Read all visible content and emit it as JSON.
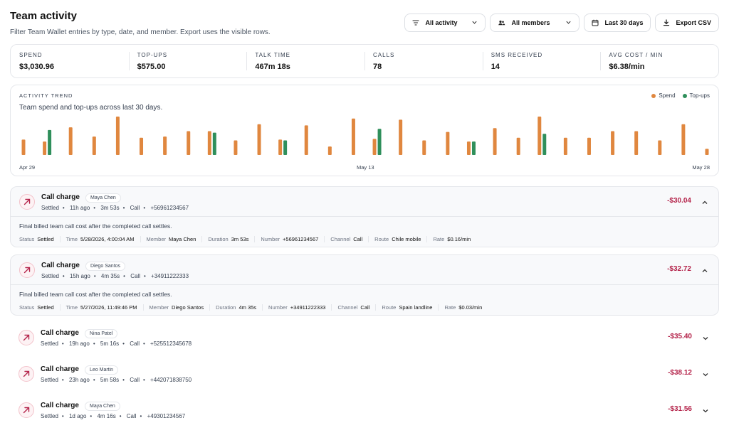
{
  "header": {
    "title": "Team activity",
    "subtitle": "Filter Team Wallet entries by type, date, and member. Export uses the visible rows."
  },
  "toolbar": {
    "activity_filter": "All activity",
    "member_filter": "All members",
    "date_range": "Last 30 days",
    "export_label": "Export CSV"
  },
  "stats": [
    {
      "label": "SPEND",
      "value": "$3,030.96"
    },
    {
      "label": "TOP-UPS",
      "value": "$575.00"
    },
    {
      "label": "TALK TIME",
      "value": "467m 18s"
    },
    {
      "label": "CALLS",
      "value": "78"
    },
    {
      "label": "SMS RECEIVED",
      "value": "14"
    },
    {
      "label": "AVG COST / MIN",
      "value": "$6.38/min"
    }
  ],
  "trend": {
    "label": "ACTIVITY TREND",
    "subtitle": "Team spend and top-ups across last 30 days."
  },
  "colors": {
    "spend": "#e0873f",
    "topup": "#2f8f5b",
    "negative": "#b4234a"
  },
  "chart_data": {
    "type": "bar",
    "title": "",
    "legend": [
      "Spend",
      "Top-ups"
    ],
    "legend_position": "top-right",
    "x_ticks": [
      "Apr 29",
      "May 13",
      "May 28"
    ],
    "categories": [
      "Apr 29",
      "Apr 30",
      "May 1",
      "May 2",
      "May 3",
      "May 4",
      "May 5",
      "May 6",
      "May 7",
      "May 8",
      "May 9",
      "May 10",
      "May 11",
      "May 12",
      "May 13",
      "May 14",
      "May 15",
      "May 16",
      "May 17",
      "May 18",
      "May 19",
      "May 20",
      "May 21",
      "May 22",
      "May 23",
      "May 24",
      "May 25",
      "May 26",
      "May 27",
      "May 28"
    ],
    "series": [
      {
        "name": "Spend",
        "values": [
          40,
          35,
          72,
          48,
          100,
          45,
          48,
          62,
          62,
          38,
          80,
          40,
          77,
          22,
          95,
          42,
          92,
          38,
          60,
          35,
          70,
          45,
          100,
          45,
          45,
          62,
          62,
          38,
          80,
          16
        ]
      },
      {
        "name": "Top-ups",
        "values": [
          0,
          65,
          0,
          0,
          0,
          0,
          0,
          0,
          58,
          0,
          0,
          38,
          0,
          0,
          0,
          68,
          0,
          0,
          0,
          35,
          0,
          0,
          55,
          0,
          0,
          0,
          0,
          0,
          0,
          0
        ]
      }
    ],
    "grid": false
  },
  "entries": [
    {
      "title": "Call charge",
      "member": "Maya Chen",
      "status": "Settled",
      "ago": "11h ago",
      "duration": "3m 53s",
      "channel": "Call",
      "number": "+56961234567",
      "amount": "-$30.04",
      "expanded": true,
      "description": "Final billed team call cost after the completed call settles.",
      "fields": [
        {
          "k": "Status",
          "v": "Settled"
        },
        {
          "k": "Time",
          "v": "5/28/2026, 4:00:04 AM"
        },
        {
          "k": "Member",
          "v": "Maya Chen"
        },
        {
          "k": "Duration",
          "v": "3m 53s"
        },
        {
          "k": "Number",
          "v": "+56961234567"
        },
        {
          "k": "Channel",
          "v": "Call"
        },
        {
          "k": "Route",
          "v": "Chile mobile"
        },
        {
          "k": "Rate",
          "v": "$0.16/min"
        }
      ]
    },
    {
      "title": "Call charge",
      "member": "Diego Santos",
      "status": "Settled",
      "ago": "15h ago",
      "duration": "4m 35s",
      "channel": "Call",
      "number": "+34911222333",
      "amount": "-$32.72",
      "expanded": true,
      "description": "Final billed team call cost after the completed call settles.",
      "fields": [
        {
          "k": "Status",
          "v": "Settled"
        },
        {
          "k": "Time",
          "v": "5/27/2026, 11:49:46 PM"
        },
        {
          "k": "Member",
          "v": "Diego Santos"
        },
        {
          "k": "Duration",
          "v": "4m 35s"
        },
        {
          "k": "Number",
          "v": "+34911222333"
        },
        {
          "k": "Channel",
          "v": "Call"
        },
        {
          "k": "Route",
          "v": "Spain landline"
        },
        {
          "k": "Rate",
          "v": "$0.03/min"
        }
      ]
    },
    {
      "title": "Call charge",
      "member": "Nina Patel",
      "status": "Settled",
      "ago": "19h ago",
      "duration": "5m 16s",
      "channel": "Call",
      "number": "+525512345678",
      "amount": "-$35.40",
      "expanded": false
    },
    {
      "title": "Call charge",
      "member": "Leo Martin",
      "status": "Settled",
      "ago": "23h ago",
      "duration": "5m 58s",
      "channel": "Call",
      "number": "+442071838750",
      "amount": "-$38.12",
      "expanded": false
    },
    {
      "title": "Call charge",
      "member": "Maya Chen",
      "status": "Settled",
      "ago": "1d ago",
      "duration": "4m 16s",
      "channel": "Call",
      "number": "+49301234567",
      "amount": "-$31.56",
      "expanded": false
    }
  ]
}
